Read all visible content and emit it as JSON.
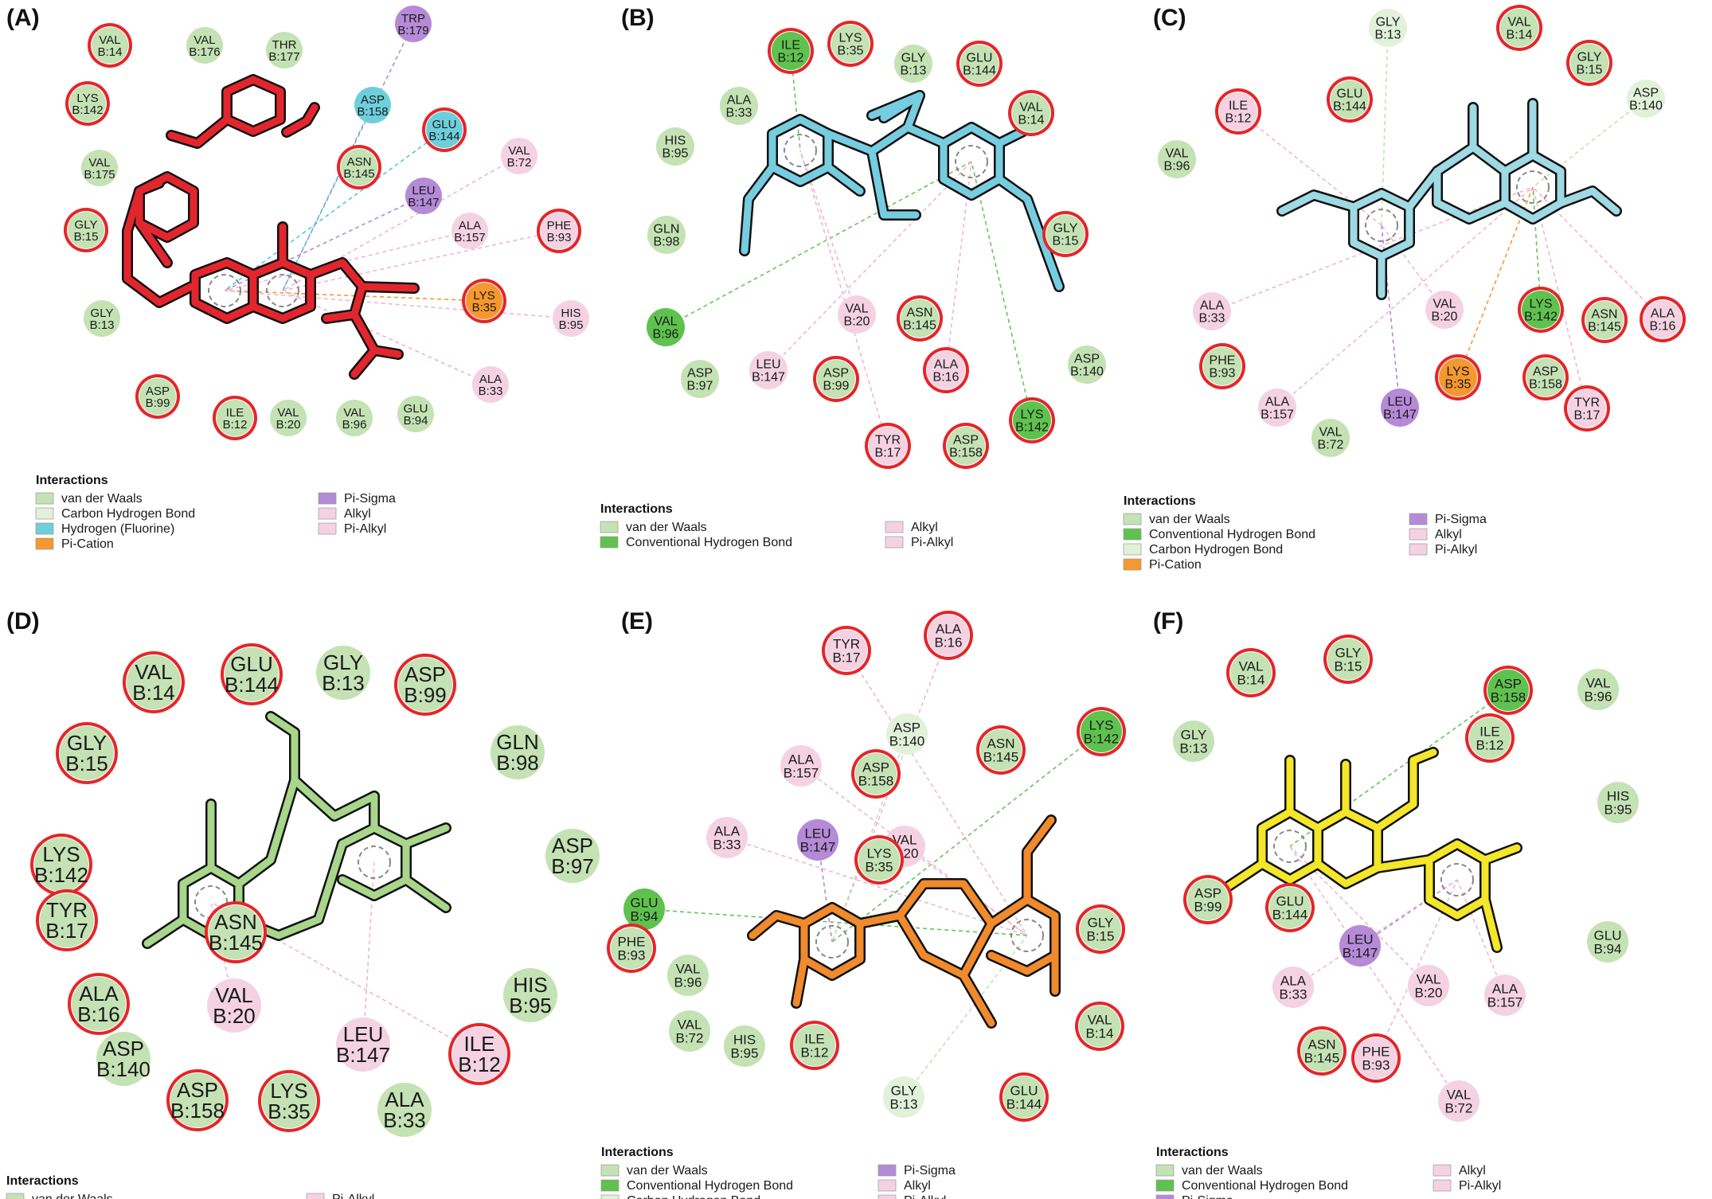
{
  "colors": {
    "vdw": "#c4e2b4",
    "conv_hbond": "#5fc24e",
    "carbon_hbond": "#e2f1da",
    "hfluorine": "#6ecfdc",
    "pi_cation": "#f5982f",
    "pi_sigma": "#b58ad6",
    "alkyl": "#f4d2e2",
    "pi_alkyl": "#f4d2e2",
    "ring_red": "#e4262a"
  },
  "legend_title": "Interactions",
  "panels": [
    {
      "label": "(A)",
      "ligand_color": "#e3262d",
      "legend_left": [
        "van der Waals",
        "Carbon Hydrogen Bond",
        "Hydrogen (Fluorine)",
        "Pi-Cation"
      ],
      "legend_left_types": [
        "vdw",
        "carbon_hbond",
        "hfluorine",
        "pi_cation"
      ],
      "legend_right": [
        "Pi-Sigma",
        "Alkyl",
        "Pi-Alkyl"
      ],
      "legend_right_types": [
        "pi_sigma",
        "alkyl",
        "pi_alkyl"
      ],
      "residues": [
        {
          "name": "VAL",
          "num": "B:14",
          "type": "vdw",
          "ring": true
        },
        {
          "name": "VAL",
          "num": "B:176",
          "type": "vdw",
          "ring": false
        },
        {
          "name": "THR",
          "num": "B:177",
          "type": "vdw",
          "ring": false
        },
        {
          "name": "TRP",
          "num": "B:179",
          "type": "pi_sigma",
          "ring": false
        },
        {
          "name": "LYS",
          "num": "B:142",
          "type": "vdw",
          "ring": true
        },
        {
          "name": "ASP",
          "num": "B:158",
          "type": "hfluorine",
          "ring": false
        },
        {
          "name": "GLU",
          "num": "B:144",
          "type": "hfluorine",
          "ring": true
        },
        {
          "name": "VAL",
          "num": "B:175",
          "type": "vdw",
          "ring": false
        },
        {
          "name": "ASN",
          "num": "B:145",
          "type": "vdw",
          "ring": true
        },
        {
          "name": "VAL",
          "num": "B:72",
          "type": "alkyl",
          "ring": false
        },
        {
          "name": "LEU",
          "num": "B:147",
          "type": "pi_sigma",
          "ring": false
        },
        {
          "name": "GLY",
          "num": "B:15",
          "type": "vdw",
          "ring": true
        },
        {
          "name": "ALA",
          "num": "B:157",
          "type": "alkyl",
          "ring": false
        },
        {
          "name": "PHE",
          "num": "B:93",
          "type": "alkyl",
          "ring": true
        },
        {
          "name": "LYS",
          "num": "B:35",
          "type": "pi_cation",
          "ring": true
        },
        {
          "name": "GLY",
          "num": "B:13",
          "type": "vdw",
          "ring": false
        },
        {
          "name": "HIS",
          "num": "B:95",
          "type": "alkyl",
          "ring": false
        },
        {
          "name": "ALA",
          "num": "B:33",
          "type": "alkyl",
          "ring": false
        },
        {
          "name": "ASP",
          "num": "B:99",
          "type": "vdw",
          "ring": true
        },
        {
          "name": "ILE",
          "num": "B:12",
          "type": "vdw",
          "ring": true
        },
        {
          "name": "VAL",
          "num": "B:20",
          "type": "vdw",
          "ring": false
        },
        {
          "name": "VAL",
          "num": "B:96",
          "type": "vdw",
          "ring": false
        },
        {
          "name": "GLU",
          "num": "B:94",
          "type": "vdw",
          "ring": false
        }
      ]
    },
    {
      "label": "(B)",
      "ligand_color": "#76cde0",
      "legend_left": [
        "van der Waals",
        "Conventional Hydrogen Bond"
      ],
      "legend_left_types": [
        "vdw",
        "conv_hbond"
      ],
      "legend_right": [
        "Alkyl",
        "Pi-Alkyl"
      ],
      "legend_right_types": [
        "alkyl",
        "pi_alkyl"
      ],
      "residues": [
        {
          "name": "ILE",
          "num": "B:12",
          "type": "conv_hbond",
          "ring": true
        },
        {
          "name": "LYS",
          "num": "B:35",
          "type": "vdw",
          "ring": true
        },
        {
          "name": "GLY",
          "num": "B:13",
          "type": "vdw",
          "ring": false
        },
        {
          "name": "GLU",
          "num": "B:144",
          "type": "vdw",
          "ring": true
        },
        {
          "name": "ALA",
          "num": "B:33",
          "type": "vdw",
          "ring": false
        },
        {
          "name": "VAL",
          "num": "B:14",
          "type": "vdw",
          "ring": true
        },
        {
          "name": "HIS",
          "num": "B:95",
          "type": "vdw",
          "ring": false
        },
        {
          "name": "GLN",
          "num": "B:98",
          "type": "vdw",
          "ring": false
        },
        {
          "name": "GLY",
          "num": "B:15",
          "type": "vdw",
          "ring": true
        },
        {
          "name": "VAL",
          "num": "B:96",
          "type": "conv_hbond",
          "ring": false
        },
        {
          "name": "VAL",
          "num": "B:20",
          "type": "alkyl",
          "ring": false
        },
        {
          "name": "ASN",
          "num": "B:145",
          "type": "vdw",
          "ring": true
        },
        {
          "name": "ASP",
          "num": "B:97",
          "type": "vdw",
          "ring": false
        },
        {
          "name": "LEU",
          "num": "B:147",
          "type": "alkyl",
          "ring": false
        },
        {
          "name": "ASP",
          "num": "B:99",
          "type": "vdw",
          "ring": true
        },
        {
          "name": "ALA",
          "num": "B:16",
          "type": "alkyl",
          "ring": true
        },
        {
          "name": "ASP",
          "num": "B:140",
          "type": "vdw",
          "ring": false
        },
        {
          "name": "LYS",
          "num": "B:142",
          "type": "conv_hbond",
          "ring": true
        },
        {
          "name": "TYR",
          "num": "B:17",
          "type": "alkyl",
          "ring": true
        },
        {
          "name": "ASP",
          "num": "B:158",
          "type": "vdw",
          "ring": true
        }
      ]
    },
    {
      "label": "(C)",
      "ligand_color": "#9ed9e4",
      "legend_left": [
        "van der Waals",
        "Conventional Hydrogen Bond",
        "Carbon Hydrogen Bond",
        "Pi-Cation"
      ],
      "legend_left_types": [
        "vdw",
        "conv_hbond",
        "carbon_hbond",
        "pi_cation"
      ],
      "legend_right": [
        "Pi-Sigma",
        "Alkyl",
        "Pi-Alkyl"
      ],
      "legend_right_types": [
        "pi_sigma",
        "alkyl",
        "pi_alkyl"
      ],
      "residues": [
        {
          "name": "GLY",
          "num": "B:13",
          "type": "carbon_hbond",
          "ring": false
        },
        {
          "name": "VAL",
          "num": "B:14",
          "type": "vdw",
          "ring": true
        },
        {
          "name": "GLY",
          "num": "B:15",
          "type": "vdw",
          "ring": true
        },
        {
          "name": "GLU",
          "num": "B:144",
          "type": "vdw",
          "ring": true
        },
        {
          "name": "ILE",
          "num": "B:12",
          "type": "alkyl",
          "ring": true
        },
        {
          "name": "ASP",
          "num": "B:140",
          "type": "carbon_hbond",
          "ring": false
        },
        {
          "name": "VAL",
          "num": "B:96",
          "type": "vdw",
          "ring": false
        },
        {
          "name": "ALA",
          "num": "B:33",
          "type": "alkyl",
          "ring": false
        },
        {
          "name": "VAL",
          "num": "B:20",
          "type": "alkyl",
          "ring": false
        },
        {
          "name": "LYS",
          "num": "B:142",
          "type": "conv_hbond",
          "ring": true
        },
        {
          "name": "ASN",
          "num": "B:145",
          "type": "vdw",
          "ring": true
        },
        {
          "name": "ALA",
          "num": "B:16",
          "type": "alkyl",
          "ring": true
        },
        {
          "name": "PHE",
          "num": "B:93",
          "type": "vdw",
          "ring": true
        },
        {
          "name": "LYS",
          "num": "B:35",
          "type": "pi_cation",
          "ring": true
        },
        {
          "name": "ASP",
          "num": "B:158",
          "type": "vdw",
          "ring": true
        },
        {
          "name": "ALA",
          "num": "B:157",
          "type": "alkyl",
          "ring": false
        },
        {
          "name": "LEU",
          "num": "B:147",
          "type": "pi_sigma",
          "ring": false
        },
        {
          "name": "TYR",
          "num": "B:17",
          "type": "alkyl",
          "ring": true
        },
        {
          "name": "VAL",
          "num": "B:72",
          "type": "vdw",
          "ring": false
        }
      ]
    },
    {
      "label": "(D)",
      "ligand_color": "#a8d68a",
      "legend_left": [
        "van der Waals"
      ],
      "legend_left_types": [
        "vdw"
      ],
      "legend_right": [
        "Pi-Alkyl"
      ],
      "legend_right_types": [
        "pi_alkyl"
      ],
      "residues": [
        {
          "name": "GLU",
          "num": "B:144",
          "type": "vdw",
          "ring": true
        },
        {
          "name": "GLY",
          "num": "B:13",
          "type": "vdw",
          "ring": false
        },
        {
          "name": "VAL",
          "num": "B:14",
          "type": "vdw",
          "ring": true
        },
        {
          "name": "ASP",
          "num": "B:99",
          "type": "vdw",
          "ring": true
        },
        {
          "name": "GLN",
          "num": "B:98",
          "type": "vdw",
          "ring": false
        },
        {
          "name": "GLY",
          "num": "B:15",
          "type": "vdw",
          "ring": true
        },
        {
          "name": "ASP",
          "num": "B:97",
          "type": "vdw",
          "ring": false
        },
        {
          "name": "LYS",
          "num": "B:142",
          "type": "vdw",
          "ring": true
        },
        {
          "name": "TYR",
          "num": "B:17",
          "type": "vdw",
          "ring": true
        },
        {
          "name": "ASN",
          "num": "B:145",
          "type": "vdw",
          "ring": true
        },
        {
          "name": "HIS",
          "num": "B:95",
          "type": "vdw",
          "ring": false
        },
        {
          "name": "ALA",
          "num": "B:16",
          "type": "vdw",
          "ring": true
        },
        {
          "name": "VAL",
          "num": "B:20",
          "type": "pi_alkyl",
          "ring": false
        },
        {
          "name": "LEU",
          "num": "B:147",
          "type": "pi_alkyl",
          "ring": false
        },
        {
          "name": "ILE",
          "num": "B:12",
          "type": "pi_alkyl",
          "ring": true
        },
        {
          "name": "ASP",
          "num": "B:140",
          "type": "vdw",
          "ring": false
        },
        {
          "name": "ASP",
          "num": "B:158",
          "type": "vdw",
          "ring": true
        },
        {
          "name": "LYS",
          "num": "B:35",
          "type": "vdw",
          "ring": true
        },
        {
          "name": "ALA",
          "num": "B:33",
          "type": "vdw",
          "ring": false
        }
      ]
    },
    {
      "label": "(E)",
      "ligand_color": "#f08a2c",
      "legend_left": [
        "van der Waals",
        "Conventional Hydrogen Bond",
        "Carbon Hydrogen Bond"
      ],
      "legend_left_types": [
        "vdw",
        "conv_hbond",
        "carbon_hbond"
      ],
      "legend_right": [
        "Pi-Sigma",
        "Alkyl",
        "Pi-Alkyl"
      ],
      "legend_right_types": [
        "pi_sigma",
        "alkyl",
        "pi_alkyl"
      ],
      "residues": [
        {
          "name": "ALA",
          "num": "B:16",
          "type": "alkyl",
          "ring": true
        },
        {
          "name": "TYR",
          "num": "B:17",
          "type": "alkyl",
          "ring": true
        },
        {
          "name": "ASP",
          "num": "B:140",
          "type": "carbon_hbond",
          "ring": false
        },
        {
          "name": "ASN",
          "num": "B:145",
          "type": "vdw",
          "ring": true
        },
        {
          "name": "LYS",
          "num": "B:142",
          "type": "conv_hbond",
          "ring": true
        },
        {
          "name": "ALA",
          "num": "B:157",
          "type": "alkyl",
          "ring": false
        },
        {
          "name": "ASP",
          "num": "B:158",
          "type": "vdw",
          "ring": true
        },
        {
          "name": "ALA",
          "num": "B:33",
          "type": "alkyl",
          "ring": false
        },
        {
          "name": "LEU",
          "num": "B:147",
          "type": "pi_sigma",
          "ring": false
        },
        {
          "name": "VAL",
          "num": "B:20",
          "type": "alkyl",
          "ring": false
        },
        {
          "name": "LYS",
          "num": "B:35",
          "type": "vdw",
          "ring": true
        },
        {
          "name": "GLU",
          "num": "B:94",
          "type": "conv_hbond",
          "ring": false
        },
        {
          "name": "PHE",
          "num": "B:93",
          "type": "vdw",
          "ring": true
        },
        {
          "name": "VAL",
          "num": "B:96",
          "type": "vdw",
          "ring": false
        },
        {
          "name": "GLY",
          "num": "B:15",
          "type": "vdw",
          "ring": true
        },
        {
          "name": "VAL",
          "num": "B:72",
          "type": "vdw",
          "ring": false
        },
        {
          "name": "HIS",
          "num": "B:95",
          "type": "vdw",
          "ring": false
        },
        {
          "name": "ILE",
          "num": "B:12",
          "type": "vdw",
          "ring": true
        },
        {
          "name": "VAL",
          "num": "B:14",
          "type": "vdw",
          "ring": true
        },
        {
          "name": "GLY",
          "num": "B:13",
          "type": "carbon_hbond",
          "ring": false
        },
        {
          "name": "GLU",
          "num": "B:144",
          "type": "vdw",
          "ring": true
        }
      ]
    },
    {
      "label": "(F)",
      "ligand_color": "#f4e628",
      "legend_left": [
        "van der Waals",
        "Conventional Hydrogen Bond",
        "Pi-Sigma"
      ],
      "legend_left_types": [
        "vdw",
        "conv_hbond",
        "pi_sigma"
      ],
      "legend_right": [
        "Alkyl",
        "Pi-Alkyl"
      ],
      "legend_right_types": [
        "alkyl",
        "pi_alkyl"
      ],
      "residues": [
        {
          "name": "GLY",
          "num": "B:15",
          "type": "vdw",
          "ring": true
        },
        {
          "name": "VAL",
          "num": "B:14",
          "type": "vdw",
          "ring": true
        },
        {
          "name": "ASP",
          "num": "B:158",
          "type": "conv_hbond",
          "ring": true
        },
        {
          "name": "VAL",
          "num": "B:96",
          "type": "vdw",
          "ring": false
        },
        {
          "name": "GLY",
          "num": "B:13",
          "type": "vdw",
          "ring": false
        },
        {
          "name": "ILE",
          "num": "B:12",
          "type": "vdw",
          "ring": true
        },
        {
          "name": "HIS",
          "num": "B:95",
          "type": "vdw",
          "ring": false
        },
        {
          "name": "ASP",
          "num": "B:99",
          "type": "vdw",
          "ring": true
        },
        {
          "name": "GLU",
          "num": "B:144",
          "type": "vdw",
          "ring": true
        },
        {
          "name": "LEU",
          "num": "B:147",
          "type": "pi_sigma",
          "ring": false
        },
        {
          "name": "GLU",
          "num": "B:94",
          "type": "vdw",
          "ring": false
        },
        {
          "name": "ALA",
          "num": "B:33",
          "type": "alkyl",
          "ring": false
        },
        {
          "name": "VAL",
          "num": "B:20",
          "type": "alkyl",
          "ring": false
        },
        {
          "name": "ALA",
          "num": "B:157",
          "type": "alkyl",
          "ring": false
        },
        {
          "name": "ASN",
          "num": "B:145",
          "type": "vdw",
          "ring": true
        },
        {
          "name": "PHE",
          "num": "B:93",
          "type": "alkyl",
          "ring": true
        },
        {
          "name": "VAL",
          "num": "B:72",
          "type": "alkyl",
          "ring": false
        }
      ]
    }
  ]
}
